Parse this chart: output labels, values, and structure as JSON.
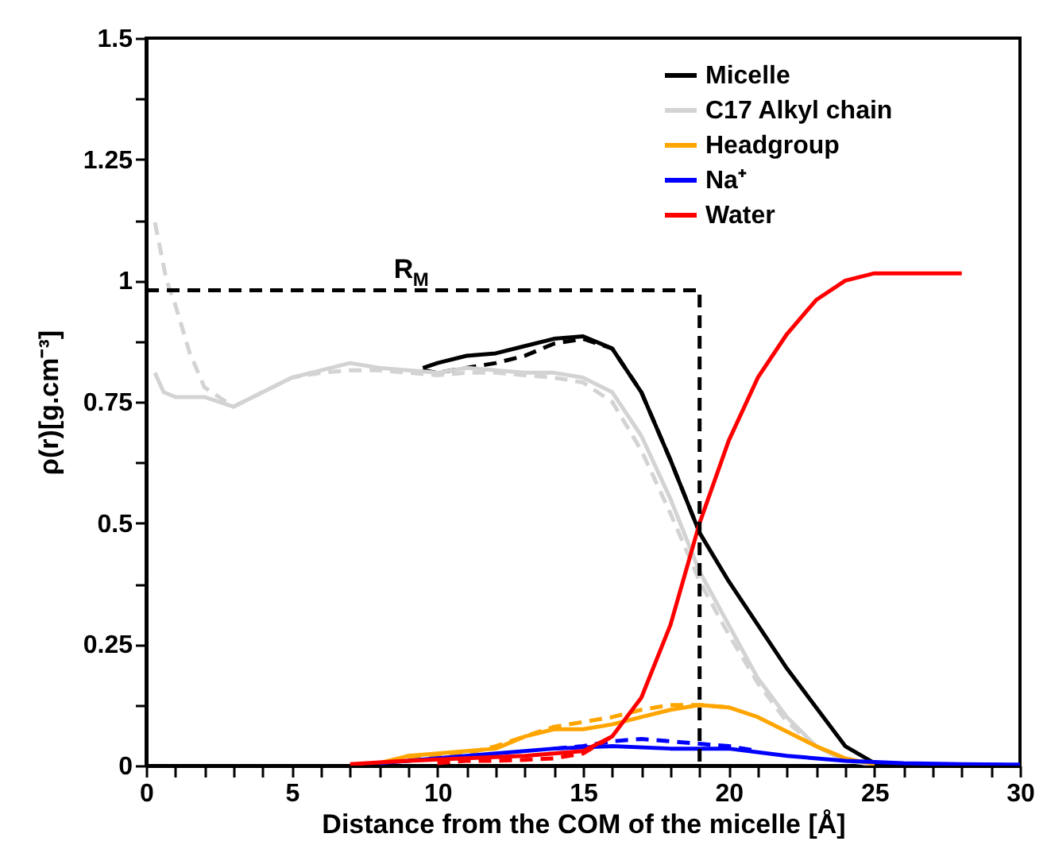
{
  "chart_data": {
    "type": "line",
    "xlabel": "Distance from the COM of the micelle [Å]",
    "ylabel": "ρ(r)[g.cm⁻³]",
    "xlim": [
      0,
      30
    ],
    "ylim": [
      0,
      1.5
    ],
    "xticks": [
      0,
      {
        "value": 1,
        "label": null
      },
      {
        "value": 2,
        "label": null
      },
      {
        "value": 3,
        "label": null
      },
      {
        "value": 4,
        "label": null
      },
      5,
      {
        "value": 6,
        "label": null
      },
      {
        "value": 7,
        "label": null
      },
      {
        "value": 8,
        "label": null
      },
      {
        "value": 9,
        "label": null
      },
      10,
      {
        "value": 11,
        "label": null
      },
      {
        "value": 12,
        "label": null
      },
      {
        "value": 13,
        "label": null
      },
      {
        "value": 14,
        "label": null
      },
      15,
      {
        "value": 16,
        "label": null
      },
      {
        "value": 17,
        "label": null
      },
      {
        "value": 18,
        "label": null
      },
      {
        "value": 19,
        "label": null
      },
      20,
      {
        "value": 21,
        "label": null
      },
      {
        "value": 22,
        "label": null
      },
      {
        "value": 23,
        "label": null
      },
      {
        "value": 24,
        "label": null
      },
      25,
      {
        "value": 26,
        "label": null
      },
      {
        "value": 27,
        "label": null
      },
      {
        "value": 28,
        "label": null
      },
      {
        "value": 29,
        "label": null
      },
      30
    ],
    "yticks": [
      0,
      {
        "value": 0.125,
        "label": null
      },
      0.25,
      {
        "value": 0.375,
        "label": null
      },
      0.5,
      {
        "value": 0.625,
        "label": null
      },
      0.75,
      {
        "value": 0.875,
        "label": null
      },
      1,
      {
        "value": 1.125,
        "label": null
      },
      1.25,
      {
        "value": 1.375,
        "label": null
      },
      1.5
    ],
    "grid": false,
    "legend": "top right",
    "marker": "none",
    "annotations": [
      {
        "text": "R$_{M}$",
        "x": 8.5,
        "y": 0.98
      }
    ],
    "series": [
      {
        "name": "Micelle",
        "color": "#000000",
        "line_style": "solid",
        "x": [
          9.5,
          10,
          11,
          12,
          13,
          14,
          15,
          16,
          17,
          18,
          19,
          20,
          21,
          22,
          23,
          24,
          25
        ],
        "values": [
          0.82,
          0.83,
          0.845,
          0.85,
          0.865,
          0.88,
          0.885,
          0.86,
          0.77,
          0.63,
          0.48,
          0.38,
          0.29,
          0.2,
          0.12,
          0.04,
          0.005
        ]
      },
      {
        "color": "#000000",
        "line_style": "dashed",
        "x": [
          9.5,
          10,
          11,
          12,
          13,
          14,
          15,
          16,
          17,
          18,
          19
        ],
        "values": [
          0.815,
          0.81,
          0.82,
          0.83,
          0.845,
          0.87,
          0.88,
          0.86,
          0.77,
          0.63,
          0.48
        ]
      },
      {
        "name": "C17 Alkyl chain",
        "color": "#d3d3d3",
        "line_style": "solid",
        "x": [
          0.3,
          0.6,
          1,
          2,
          3,
          4,
          5,
          6,
          7,
          8,
          9,
          10,
          11,
          12,
          13,
          14,
          15,
          16,
          17,
          18,
          19,
          20,
          21,
          22,
          23,
          24,
          25
        ],
        "values": [
          0.81,
          0.77,
          0.76,
          0.76,
          0.74,
          0.77,
          0.8,
          0.815,
          0.83,
          0.82,
          0.815,
          0.81,
          0.82,
          0.815,
          0.81,
          0.81,
          0.8,
          0.77,
          0.68,
          0.55,
          0.4,
          0.29,
          0.18,
          0.1,
          0.04,
          0.01,
          0.002
        ]
      },
      {
        "color": "#d3d3d3",
        "line_style": "dashed",
        "x": [
          0.3,
          0.7,
          1,
          1.5,
          2,
          3,
          4,
          5,
          6,
          7,
          8,
          9,
          10,
          11,
          12,
          13,
          14,
          15,
          16,
          17,
          18,
          19,
          20,
          21,
          22,
          23,
          24,
          25
        ],
        "values": [
          1.12,
          1.0,
          0.95,
          0.85,
          0.78,
          0.74,
          0.77,
          0.8,
          0.81,
          0.815,
          0.815,
          0.81,
          0.805,
          0.81,
          0.81,
          0.805,
          0.8,
          0.79,
          0.75,
          0.65,
          0.52,
          0.38,
          0.27,
          0.17,
          0.09,
          0.04,
          0.01,
          0.002
        ]
      },
      {
        "name": "Headgroup",
        "color": "#ffa500",
        "line_style": "solid",
        "x": [
          8,
          9,
          10,
          11,
          12,
          13,
          14,
          15,
          16,
          17,
          18,
          19,
          20,
          21,
          22,
          23,
          24,
          25
        ],
        "values": [
          0.005,
          0.02,
          0.025,
          0.03,
          0.035,
          0.06,
          0.075,
          0.075,
          0.085,
          0.1,
          0.115,
          0.125,
          0.12,
          0.1,
          0.07,
          0.04,
          0.015,
          0.003
        ]
      },
      {
        "color": "#ffa500",
        "line_style": "dashed",
        "x": [
          9,
          10,
          11,
          12,
          13,
          14,
          15,
          16,
          17,
          18,
          19,
          20
        ],
        "values": [
          0.015,
          0.02,
          0.025,
          0.04,
          0.06,
          0.08,
          0.09,
          0.1,
          0.115,
          0.125,
          0.125,
          0.12
        ]
      },
      {
        "name": "Na⁺",
        "color": "#0000ff",
        "line_style": "solid",
        "x": [
          8,
          10,
          12,
          14,
          16,
          18,
          20,
          22,
          24,
          26,
          28,
          30
        ],
        "values": [
          0.005,
          0.015,
          0.025,
          0.035,
          0.04,
          0.035,
          0.035,
          0.02,
          0.01,
          0.005,
          0.003,
          0.002
        ]
      },
      {
        "color": "#0000ff",
        "line_style": "dashed",
        "x": [
          14,
          15,
          16,
          17,
          18,
          19,
          20,
          21
        ],
        "values": [
          0.035,
          0.04,
          0.05,
          0.055,
          0.05,
          0.045,
          0.04,
          0.03
        ]
      },
      {
        "name": "Water",
        "color": "#ff0000",
        "line_style": "solid",
        "x": [
          7,
          9,
          11,
          13,
          15,
          16,
          17,
          18,
          19,
          20,
          21,
          22,
          23,
          24,
          25,
          26,
          28
        ],
        "values": [
          0.003,
          0.01,
          0.015,
          0.02,
          0.03,
          0.06,
          0.14,
          0.29,
          0.5,
          0.67,
          0.8,
          0.89,
          0.96,
          1.0,
          1.015,
          1.015,
          1.015
        ]
      },
      {
        "color": "#ff0000",
        "line_style": "dashed",
        "x": [
          10,
          11,
          12,
          13,
          14,
          15,
          16
        ],
        "values": [
          0.005,
          0.01,
          0.01,
          0.012,
          0.015,
          0.025,
          0.06
        ]
      },
      {
        "color": "#000000",
        "line_style": "dashed",
        "x": [
          0,
          19,
          19
        ],
        "values": [
          0.98,
          0.98,
          0
        ]
      }
    ]
  }
}
